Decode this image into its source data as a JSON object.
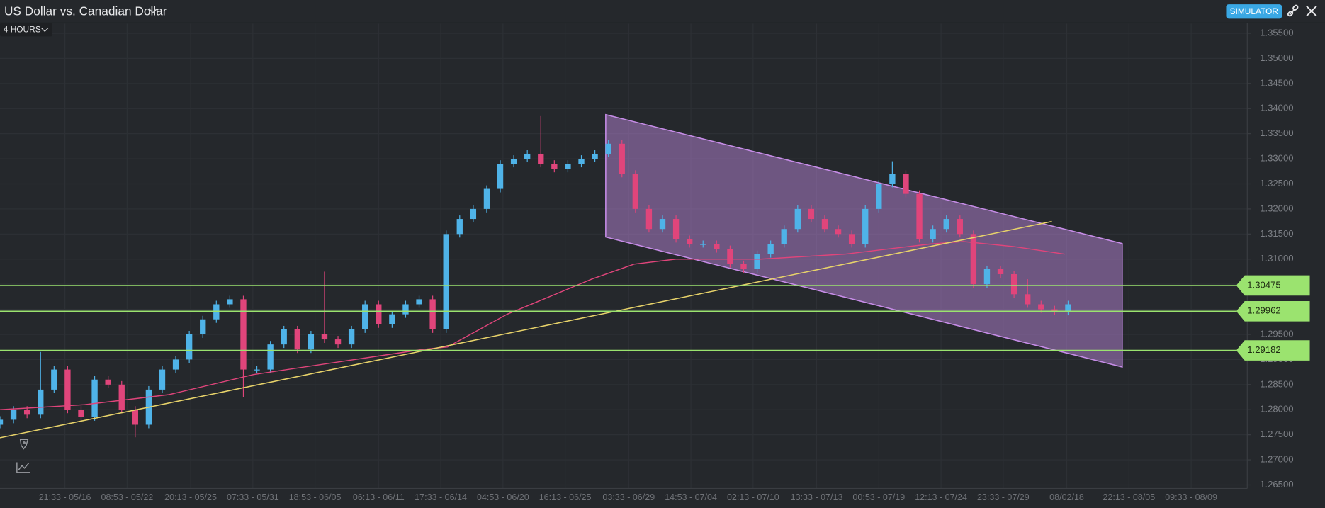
{
  "chart_data": {
    "type": "candlestick",
    "title": "US Dollar vs. Canadian Dollar",
    "timeframe": "4 HOURS",
    "badge": "SIMULATOR",
    "up_color": "#4fb3e8",
    "down_color": "#e0457b",
    "grid": true,
    "xlim": [
      0,
      92.25
    ],
    "ylim": [
      1.2643,
      1.3569
    ],
    "xticks": [
      {
        "value": 4.8,
        "label": "21:33 - 05/16"
      },
      {
        "value": 9.4,
        "label": "08:53 - 05/22"
      },
      {
        "value": 14.1,
        "label": "20:13 - 05/25"
      },
      {
        "value": 18.7,
        "label": "07:33 - 05/31"
      },
      {
        "value": 23.3,
        "label": "18:53 - 06/05"
      },
      {
        "value": 28.0,
        "label": "06:13 - 06/11"
      },
      {
        "value": 32.6,
        "label": "17:33 - 06/14"
      },
      {
        "value": 37.2,
        "label": "04:53 - 06/20"
      },
      {
        "value": 41.8,
        "label": "16:13 - 06/25"
      },
      {
        "value": 46.5,
        "label": "03:33 - 06/29"
      },
      {
        "value": 51.1,
        "label": "14:53 - 07/04"
      },
      {
        "value": 55.7,
        "label": "02:13 - 07/10"
      },
      {
        "value": 60.4,
        "label": "13:33 - 07/13"
      },
      {
        "value": 65.0,
        "label": "00:53 - 07/19"
      },
      {
        "value": 69.6,
        "label": "12:13 - 07/24"
      },
      {
        "value": 74.2,
        "label": "23:33 - 07/29"
      },
      {
        "value": 78.9,
        "label": "08/02/18"
      },
      {
        "value": 83.5,
        "label": "22:13 - 08/05"
      },
      {
        "value": 88.1,
        "label": "09:33 - 08/09"
      }
    ],
    "yticks": [
      {
        "value": 1.265,
        "label": "1.26500"
      },
      {
        "value": 1.27,
        "label": "1.27000"
      },
      {
        "value": 1.275,
        "label": "1.27500"
      },
      {
        "value": 1.28,
        "label": "1.28000"
      },
      {
        "value": 1.285,
        "label": "1.28500"
      },
      {
        "value": 1.29,
        "label": "1.29000"
      },
      {
        "value": 1.295,
        "label": "1.29500"
      },
      {
        "value": 1.3,
        "label": "1.30000"
      },
      {
        "value": 1.305,
        "label": "1.30500"
      },
      {
        "value": 1.31,
        "label": "1.31000"
      },
      {
        "value": 1.315,
        "label": "1.31500"
      },
      {
        "value": 1.32,
        "label": "1.32000"
      },
      {
        "value": 1.325,
        "label": "1.32500"
      },
      {
        "value": 1.33,
        "label": "1.33000"
      },
      {
        "value": 1.335,
        "label": "1.33500"
      },
      {
        "value": 1.34,
        "label": "1.34000"
      },
      {
        "value": 1.345,
        "label": "1.34500"
      },
      {
        "value": 1.35,
        "label": "1.35000"
      },
      {
        "value": 1.355,
        "label": "1.35500"
      }
    ],
    "x": [
      0,
      1,
      2,
      3,
      4,
      5,
      6,
      7,
      8,
      9,
      10,
      11,
      12,
      13,
      14,
      15,
      16,
      17,
      18,
      19,
      20,
      21,
      22,
      23,
      24,
      25,
      26,
      27,
      28,
      29,
      30,
      31,
      32,
      33,
      34,
      35,
      36,
      37,
      38,
      39,
      40,
      41,
      42,
      43,
      44,
      45,
      46,
      47,
      48,
      49,
      50,
      51,
      52,
      53,
      54,
      55,
      56,
      57,
      58,
      59,
      60,
      61,
      62,
      63,
      64,
      65,
      66,
      67,
      68,
      69,
      70,
      71,
      72,
      73,
      74,
      75,
      76,
      77,
      78,
      79
    ],
    "open": [
      1.277,
      1.278,
      1.28,
      1.279,
      1.284,
      1.288,
      1.28,
      1.2785,
      1.286,
      1.285,
      1.28,
      1.277,
      1.284,
      1.288,
      1.29,
      1.295,
      1.298,
      1.301,
      1.302,
      1.288,
      1.288,
      1.293,
      1.296,
      1.292,
      1.295,
      1.294,
      1.293,
      1.296,
      1.301,
      1.297,
      1.299,
      1.301,
      1.302,
      1.296,
      1.315,
      1.318,
      1.32,
      1.324,
      1.329,
      1.33,
      1.331,
      1.329,
      1.328,
      1.329,
      1.33,
      1.331,
      1.333,
      1.327,
      1.32,
      1.316,
      1.318,
      1.314,
      1.313,
      1.313,
      1.312,
      1.309,
      1.308,
      1.311,
      1.313,
      1.316,
      1.32,
      1.318,
      1.316,
      1.315,
      1.313,
      1.32,
      1.325,
      1.327,
      1.323,
      1.314,
      1.316,
      1.318,
      1.315,
      1.305,
      1.308,
      1.307,
      1.303,
      1.301,
      1.3,
      1.2995
    ],
    "high": [
      1.2787,
      1.2807,
      1.2807,
      1.2915,
      1.2887,
      1.2887,
      1.2807,
      1.2867,
      1.2867,
      1.2857,
      1.2807,
      1.2847,
      1.2887,
      1.2907,
      1.2957,
      1.2987,
      1.3017,
      1.3027,
      1.3027,
      1.2887,
      1.2937,
      1.2967,
      1.2967,
      1.2957,
      1.3075,
      1.2947,
      1.2967,
      1.3017,
      1.3017,
      1.2997,
      1.3017,
      1.3027,
      1.3027,
      1.3157,
      1.3187,
      1.3207,
      1.3247,
      1.3297,
      1.3307,
      1.3317,
      1.3385,
      1.3297,
      1.3297,
      1.3307,
      1.3317,
      1.3337,
      1.3337,
      1.3277,
      1.3207,
      1.3187,
      1.3187,
      1.3147,
      1.3137,
      1.3137,
      1.3127,
      1.3097,
      1.3117,
      1.3137,
      1.3167,
      1.3207,
      1.3207,
      1.3187,
      1.3167,
      1.3157,
      1.3207,
      1.3257,
      1.3295,
      1.3277,
      1.3237,
      1.3167,
      1.3187,
      1.3187,
      1.3157,
      1.3087,
      1.3087,
      1.3077,
      1.306,
      1.3017,
      1.3007,
      1.3017
    ],
    "low": [
      1.2763,
      1.2773,
      1.2783,
      1.2783,
      1.2833,
      1.2793,
      1.2778,
      1.2778,
      1.2843,
      1.2793,
      1.2745,
      1.2763,
      1.2833,
      1.2873,
      1.2893,
      1.2943,
      1.2973,
      1.3003,
      1.2825,
      1.2873,
      1.2873,
      1.2923,
      1.2913,
      1.2913,
      1.2933,
      1.2923,
      1.2923,
      1.2953,
      1.2963,
      1.2963,
      1.2983,
      1.3003,
      1.2953,
      1.2953,
      1.3143,
      1.3173,
      1.3193,
      1.3233,
      1.3283,
      1.3293,
      1.3283,
      1.3273,
      1.3273,
      1.3283,
      1.3293,
      1.3303,
      1.3263,
      1.3193,
      1.3153,
      1.3153,
      1.3133,
      1.3123,
      1.3123,
      1.3113,
      1.3083,
      1.3073,
      1.3073,
      1.3103,
      1.3123,
      1.3153,
      1.3173,
      1.3153,
      1.3143,
      1.3123,
      1.3123,
      1.3193,
      1.3243,
      1.3223,
      1.3133,
      1.3133,
      1.3153,
      1.3143,
      1.3043,
      1.3043,
      1.3063,
      1.3023,
      1.3003,
      1.2993,
      1.2988,
      1.2988
    ],
    "close": [
      1.278,
      1.28,
      1.279,
      1.284,
      1.288,
      1.28,
      1.2785,
      1.286,
      1.285,
      1.28,
      1.277,
      1.284,
      1.288,
      1.29,
      1.295,
      1.298,
      1.301,
      1.302,
      1.288,
      1.288,
      1.293,
      1.296,
      1.292,
      1.295,
      1.294,
      1.293,
      1.296,
      1.301,
      1.297,
      1.299,
      1.301,
      1.302,
      1.296,
      1.315,
      1.318,
      1.32,
      1.324,
      1.329,
      1.33,
      1.331,
      1.329,
      1.328,
      1.329,
      1.33,
      1.331,
      1.333,
      1.327,
      1.32,
      1.316,
      1.318,
      1.314,
      1.313,
      1.313,
      1.312,
      1.309,
      1.308,
      1.311,
      1.313,
      1.316,
      1.32,
      1.318,
      1.316,
      1.315,
      1.313,
      1.32,
      1.325,
      1.327,
      1.323,
      1.314,
      1.316,
      1.318,
      1.315,
      1.305,
      1.308,
      1.307,
      1.303,
      1.301,
      1.3,
      1.2995,
      1.301
    ],
    "moving_average": {
      "color": "#e0457b",
      "x": [
        0,
        6.25,
        12.5,
        18.75,
        25,
        31.25,
        33.1,
        37.5,
        43.75,
        46.9,
        50,
        56.25,
        62.5,
        68.75,
        71.25,
        75,
        78.75
      ],
      "values": [
        1.28,
        1.281,
        1.283,
        1.287,
        1.2895,
        1.292,
        1.2925,
        1.299,
        1.306,
        1.309,
        1.31,
        1.31,
        1.311,
        1.313,
        1.3135,
        1.3125,
        1.311
      ]
    },
    "trendline": {
      "color": "#e8d36a",
      "x": [
        0,
        77.8
      ],
      "y": [
        1.2744,
        1.3175
      ]
    },
    "channel": {
      "color": "#c78de8",
      "x": [
        44.8,
        83
      ],
      "upper": [
        1.3388,
        1.3131
      ],
      "lower": [
        1.3144,
        1.2885
      ]
    },
    "level_color": "#9be36f",
    "levels": [
      1.30475,
      1.29962,
      1.29182
    ]
  }
}
